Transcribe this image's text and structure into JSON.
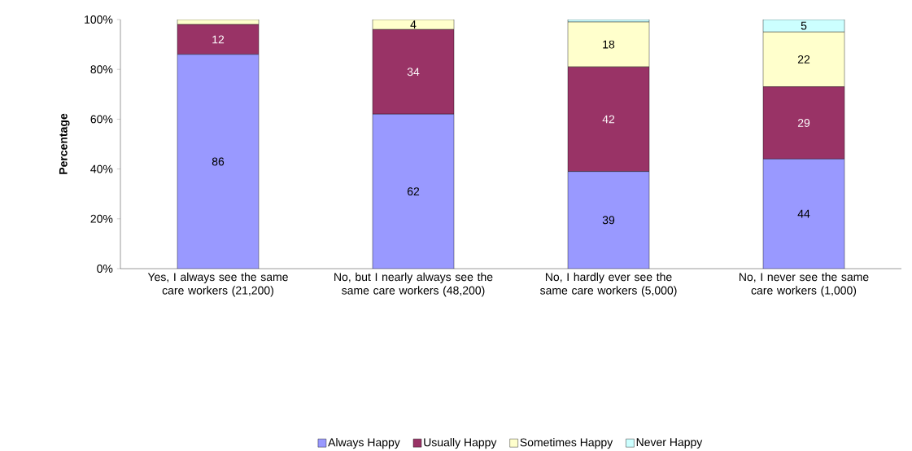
{
  "chart_data": {
    "type": "bar",
    "stacked": true,
    "ylabel": "Percentage",
    "categories": [
      "Yes, I always see the same care workers (21,200)",
      "No, but I nearly always see the same care workers (48,200)",
      "No, I hardly ever see the same care workers (5,000)",
      "No, I never see the same care workers (1,000)"
    ],
    "series": [
      {
        "name": "Always Happy",
        "color": "#9999ff",
        "values": [
          86,
          62,
          39,
          44
        ],
        "value_labels": [
          "86",
          "62",
          "39",
          "44"
        ]
      },
      {
        "name": "Usually Happy",
        "color": "#993366",
        "values": [
          12,
          34,
          42,
          29
        ],
        "value_labels": [
          "12",
          "34",
          "42",
          "29"
        ]
      },
      {
        "name": "Sometimes Happy",
        "color": "#ffffcc",
        "values": [
          2,
          4,
          18,
          22
        ],
        "value_labels": [
          null,
          "4",
          "18",
          "22"
        ]
      },
      {
        "name": "Never Happy",
        "color": "#ccffff",
        "values": [
          0,
          0,
          1,
          5
        ],
        "value_labels": [
          null,
          null,
          null,
          "5"
        ]
      }
    ],
    "ylim": [
      0,
      100
    ],
    "yticks": [
      {
        "value": 0,
        "label": "0%"
      },
      {
        "value": 20,
        "label": "20%"
      },
      {
        "value": 40,
        "label": "40%"
      },
      {
        "value": 60,
        "label": "60%"
      },
      {
        "value": 80,
        "label": "80%"
      },
      {
        "value": 100,
        "label": "100%"
      }
    ],
    "legend": "bottom",
    "grid": false
  }
}
